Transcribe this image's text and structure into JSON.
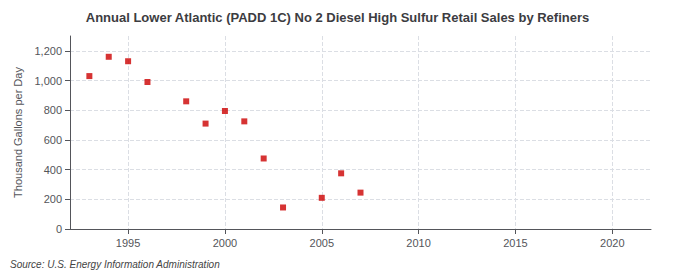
{
  "chart_data": {
    "type": "scatter",
    "title": "Annual Lower Atlantic (PADD 1C) No 2 Diesel High Sulfur Retail Sales by Refiners",
    "ylabel": "Thousand Gallons per Day",
    "annotation": "Source: U.S. Energy Information Administration",
    "x": [
      1993,
      1994,
      1995,
      1996,
      1998,
      1999,
      2000,
      2001,
      2002,
      2003,
      2005,
      2006,
      2007
    ],
    "values": [
      1030,
      1160,
      1130,
      990,
      860,
      710,
      795,
      725,
      475,
      145,
      210,
      375,
      245
    ],
    "color": "#cc0000",
    "marker": "square",
    "xlim": [
      1992,
      2022
    ],
    "xticks": [
      1995,
      2000,
      2005,
      2010,
      2015,
      2020
    ],
    "ylim": [
      0,
      1300
    ],
    "yticks": [
      0,
      200,
      400,
      600,
      800,
      {
        "value": 1000,
        "label": "1,000"
      },
      {
        "value": 1200,
        "label": "1,200"
      }
    ],
    "grid": true
  }
}
